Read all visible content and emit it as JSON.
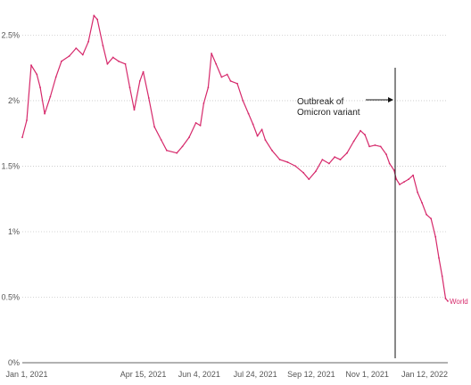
{
  "chart_data": {
    "type": "line",
    "x_axis": {
      "tick_labels": [
        "Jan 1, 2021",
        "Apr 15, 2021",
        "Jun 4, 2021",
        "Jul 24, 2021",
        "Sep 12, 2021",
        "Nov 1, 2021",
        "Jan 12, 2022"
      ],
      "range": [
        "2020-12-28",
        "2022-01-12"
      ]
    },
    "y_axis": {
      "tick_labels": [
        "0%",
        "0.5%",
        "1%",
        "1.5%",
        "2%",
        "2.5%"
      ],
      "ticks": [
        0,
        0.5,
        1,
        1.5,
        2,
        2.5
      ],
      "range": [
        0,
        2.7
      ]
    },
    "grid": "horizontal",
    "series": [
      {
        "name": "World",
        "color": "#d6296b",
        "points": [
          [
            "2020-12-28",
            1.72
          ],
          [
            "2021-01-01",
            1.85
          ],
          [
            "2021-01-05",
            2.27
          ],
          [
            "2021-01-10",
            2.2
          ],
          [
            "2021-01-13",
            2.1
          ],
          [
            "2021-01-17",
            1.9
          ],
          [
            "2021-01-22",
            2.03
          ],
          [
            "2021-01-27",
            2.18
          ],
          [
            "2021-02-01",
            2.3
          ],
          [
            "2021-02-08",
            2.34
          ],
          [
            "2021-02-14",
            2.4
          ],
          [
            "2021-02-20",
            2.35
          ],
          [
            "2021-02-25",
            2.45
          ],
          [
            "2021-03-02",
            2.65
          ],
          [
            "2021-03-05",
            2.62
          ],
          [
            "2021-03-10",
            2.42
          ],
          [
            "2021-03-14",
            2.28
          ],
          [
            "2021-03-19",
            2.33
          ],
          [
            "2021-03-24",
            2.3
          ],
          [
            "2021-03-30",
            2.28
          ],
          [
            "2021-04-03",
            2.1
          ],
          [
            "2021-04-07",
            1.93
          ],
          [
            "2021-04-12",
            2.15
          ],
          [
            "2021-04-15",
            2.22
          ],
          [
            "2021-04-20",
            2.02
          ],
          [
            "2021-04-25",
            1.8
          ],
          [
            "2021-05-01",
            1.7
          ],
          [
            "2021-05-06",
            1.62
          ],
          [
            "2021-05-15",
            1.6
          ],
          [
            "2021-05-20",
            1.65
          ],
          [
            "2021-05-26",
            1.72
          ],
          [
            "2021-06-01",
            1.83
          ],
          [
            "2021-06-05",
            1.81
          ],
          [
            "2021-06-08",
            1.98
          ],
          [
            "2021-06-12",
            2.1
          ],
          [
            "2021-06-15",
            2.36
          ],
          [
            "2021-06-19",
            2.28
          ],
          [
            "2021-06-24",
            2.18
          ],
          [
            "2021-06-29",
            2.2
          ],
          [
            "2021-07-02",
            2.15
          ],
          [
            "2021-07-08",
            2.13
          ],
          [
            "2021-07-13",
            2.0
          ],
          [
            "2021-07-18",
            1.9
          ],
          [
            "2021-07-22",
            1.82
          ],
          [
            "2021-07-26",
            1.73
          ],
          [
            "2021-07-30",
            1.78
          ],
          [
            "2021-08-02",
            1.7
          ],
          [
            "2021-08-08",
            1.62
          ],
          [
            "2021-08-15",
            1.55
          ],
          [
            "2021-08-22",
            1.53
          ],
          [
            "2021-08-29",
            1.5
          ],
          [
            "2021-09-05",
            1.45
          ],
          [
            "2021-09-10",
            1.4
          ],
          [
            "2021-09-16",
            1.46
          ],
          [
            "2021-09-22",
            1.55
          ],
          [
            "2021-09-28",
            1.52
          ],
          [
            "2021-10-03",
            1.57
          ],
          [
            "2021-10-08",
            1.55
          ],
          [
            "2021-10-14",
            1.6
          ],
          [
            "2021-10-20",
            1.69
          ],
          [
            "2021-10-26",
            1.77
          ],
          [
            "2021-10-30",
            1.74
          ],
          [
            "2021-11-03",
            1.65
          ],
          [
            "2021-11-08",
            1.66
          ],
          [
            "2021-11-13",
            1.65
          ],
          [
            "2021-11-18",
            1.59
          ],
          [
            "2021-11-21",
            1.52
          ],
          [
            "2021-11-25",
            1.47
          ],
          [
            "2021-11-27",
            1.4
          ],
          [
            "2021-11-30",
            1.36
          ],
          [
            "2021-12-04",
            1.38
          ],
          [
            "2021-12-08",
            1.4
          ],
          [
            "2021-12-12",
            1.43
          ],
          [
            "2021-12-16",
            1.3
          ],
          [
            "2021-12-20",
            1.22
          ],
          [
            "2021-12-24",
            1.13
          ],
          [
            "2021-12-28",
            1.1
          ],
          [
            "2022-01-01",
            0.96
          ],
          [
            "2022-01-04",
            0.8
          ],
          [
            "2022-01-07",
            0.66
          ],
          [
            "2022-01-10",
            0.49
          ],
          [
            "2022-01-12",
            0.47
          ]
        ]
      }
    ],
    "annotations": [
      {
        "text": [
          "Outbreak of",
          "Omicron variant"
        ],
        "date": "2021-11-26"
      }
    ]
  }
}
